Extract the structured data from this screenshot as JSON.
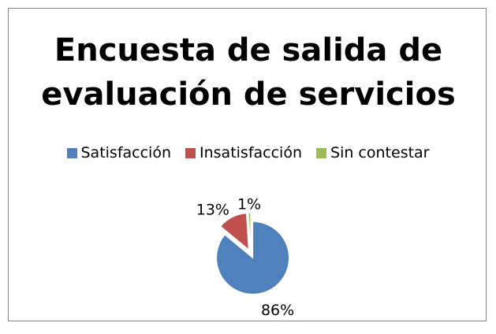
{
  "chart_data": {
    "type": "pie",
    "title": "Encuesta de salida de evaluación de servicios",
    "categories": [
      "Satisfacción",
      "Insatisfacción",
      "Sin contestar"
    ],
    "values": [
      86,
      13,
      1
    ],
    "value_labels": [
      "86%",
      "13%",
      "1%"
    ],
    "colors": [
      "#4f81bd",
      "#c0504d",
      "#9bbb59"
    ],
    "legend": "top"
  }
}
